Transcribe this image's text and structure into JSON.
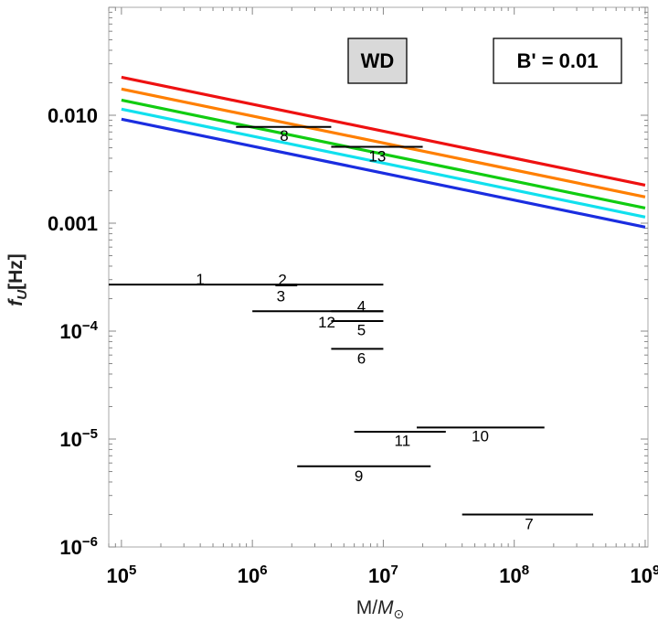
{
  "chart_data": {
    "type": "line",
    "xlabel_main": "M/",
    "xlabel_sub": "M",
    "xlabel_subscript": "⊙",
    "ylabel_main": "f",
    "ylabel_sub": "U",
    "ylabel_unit": "[Hz]",
    "xscale": "log",
    "yscale": "log",
    "xlim": [
      80000,
      1050000000
    ],
    "ylim": [
      1e-06,
      0.1
    ],
    "x_ticks": [
      {
        "value": 100000,
        "base": "10",
        "exp": "5"
      },
      {
        "value": 1000000,
        "base": "10",
        "exp": "6"
      },
      {
        "value": 10000000,
        "base": "10",
        "exp": "7"
      },
      {
        "value": 100000000,
        "base": "10",
        "exp": "8"
      },
      {
        "value": 1000000000,
        "base": "10",
        "exp": "9"
      }
    ],
    "y_ticks": [
      {
        "value": 0.01,
        "text": "0.010",
        "base": "",
        "exp": ""
      },
      {
        "value": 0.001,
        "text": "0.001",
        "base": "",
        "exp": ""
      },
      {
        "value": 0.0001,
        "text": "",
        "base": "10",
        "exp": "−4"
      },
      {
        "value": 1e-05,
        "text": "",
        "base": "10",
        "exp": "−5"
      },
      {
        "value": 1e-06,
        "text": "",
        "base": "10",
        "exp": "−6"
      }
    ],
    "annotation_boxes": [
      {
        "id": "wd",
        "text": "WD",
        "fill": "#d9d9d9",
        "position": "top-center"
      },
      {
        "id": "bprime",
        "text": "B' = 0.01",
        "fill": "#ffffff",
        "position": "top-right"
      }
    ],
    "series": [
      {
        "name": "red",
        "color": "#ee1111",
        "x": [
          100000,
          1000000000
        ],
        "y": [
          0.0225,
          0.00225
        ]
      },
      {
        "name": "orange",
        "color": "#ff7f00",
        "x": [
          100000,
          1000000000
        ],
        "y": [
          0.0175,
          0.00175
        ]
      },
      {
        "name": "green",
        "color": "#11cc11",
        "x": [
          100000,
          1000000000
        ],
        "y": [
          0.0138,
          0.00138
        ]
      },
      {
        "name": "cyan",
        "color": "#11e0ee",
        "x": [
          100000,
          1000000000
        ],
        "y": [
          0.0114,
          0.00114
        ]
      },
      {
        "name": "blue",
        "color": "#1a2de0",
        "x": [
          100000,
          1000000000
        ],
        "y": [
          0.0092,
          0.00092
        ]
      }
    ],
    "ranges": [
      {
        "label": "1",
        "x": [
          80000,
          10000000
        ],
        "y": 0.00027,
        "label_x": 400000,
        "label_y": 0.000305
      },
      {
        "label": "2",
        "x": [
          1700000,
          2200000
        ],
        "y": 0.00027,
        "label_x": 1700000,
        "label_y": 0.0003
      },
      {
        "label": "3",
        "x": [
          1500000,
          2200000
        ],
        "y": 0.000265,
        "label_x": 1650000,
        "label_y": 0.000213
      },
      {
        "label": "4",
        "x": [
          4000000,
          10000000
        ],
        "y": 0.000153,
        "label_x": 6800000,
        "label_y": 0.000171
      },
      {
        "label": "12",
        "x": [
          1000000,
          10000000
        ],
        "y": 0.000153,
        "label_x": 3700000,
        "label_y": 0.000121
      },
      {
        "label": "5",
        "x": [
          4000000,
          10000000
        ],
        "y": 0.000124,
        "label_x": 6800000,
        "label_y": 0.000103
      },
      {
        "label": "6",
        "x": [
          4000000,
          10000000
        ],
        "y": 6.85e-05,
        "label_x": 6800000,
        "label_y": 5.65e-05
      },
      {
        "label": "8",
        "x": [
          750000,
          4000000
        ],
        "y": 0.0078,
        "label_x": 1750000,
        "label_y": 0.0065
      },
      {
        "label": "13",
        "x": [
          4000000,
          20000000
        ],
        "y": 0.0051,
        "label_x": 9000000,
        "label_y": 0.0042
      },
      {
        "label": "10",
        "x": [
          18000000,
          170000000
        ],
        "y": 1.28e-05,
        "label_x": 55000000,
        "label_y": 1.07e-05
      },
      {
        "label": "11",
        "x": [
          6000000,
          30000000
        ],
        "y": 1.17e-05,
        "label_x": 14000000,
        "label_y": 9.7e-06
      },
      {
        "label": "9",
        "x": [
          2200000,
          23000000
        ],
        "y": 5.6e-06,
        "label_x": 6500000,
        "label_y": 4.6e-06
      },
      {
        "label": "7",
        "x": [
          40000000,
          400000000
        ],
        "y": 2e-06,
        "label_x": 130000000,
        "label_y": 1.65e-06
      }
    ]
  }
}
